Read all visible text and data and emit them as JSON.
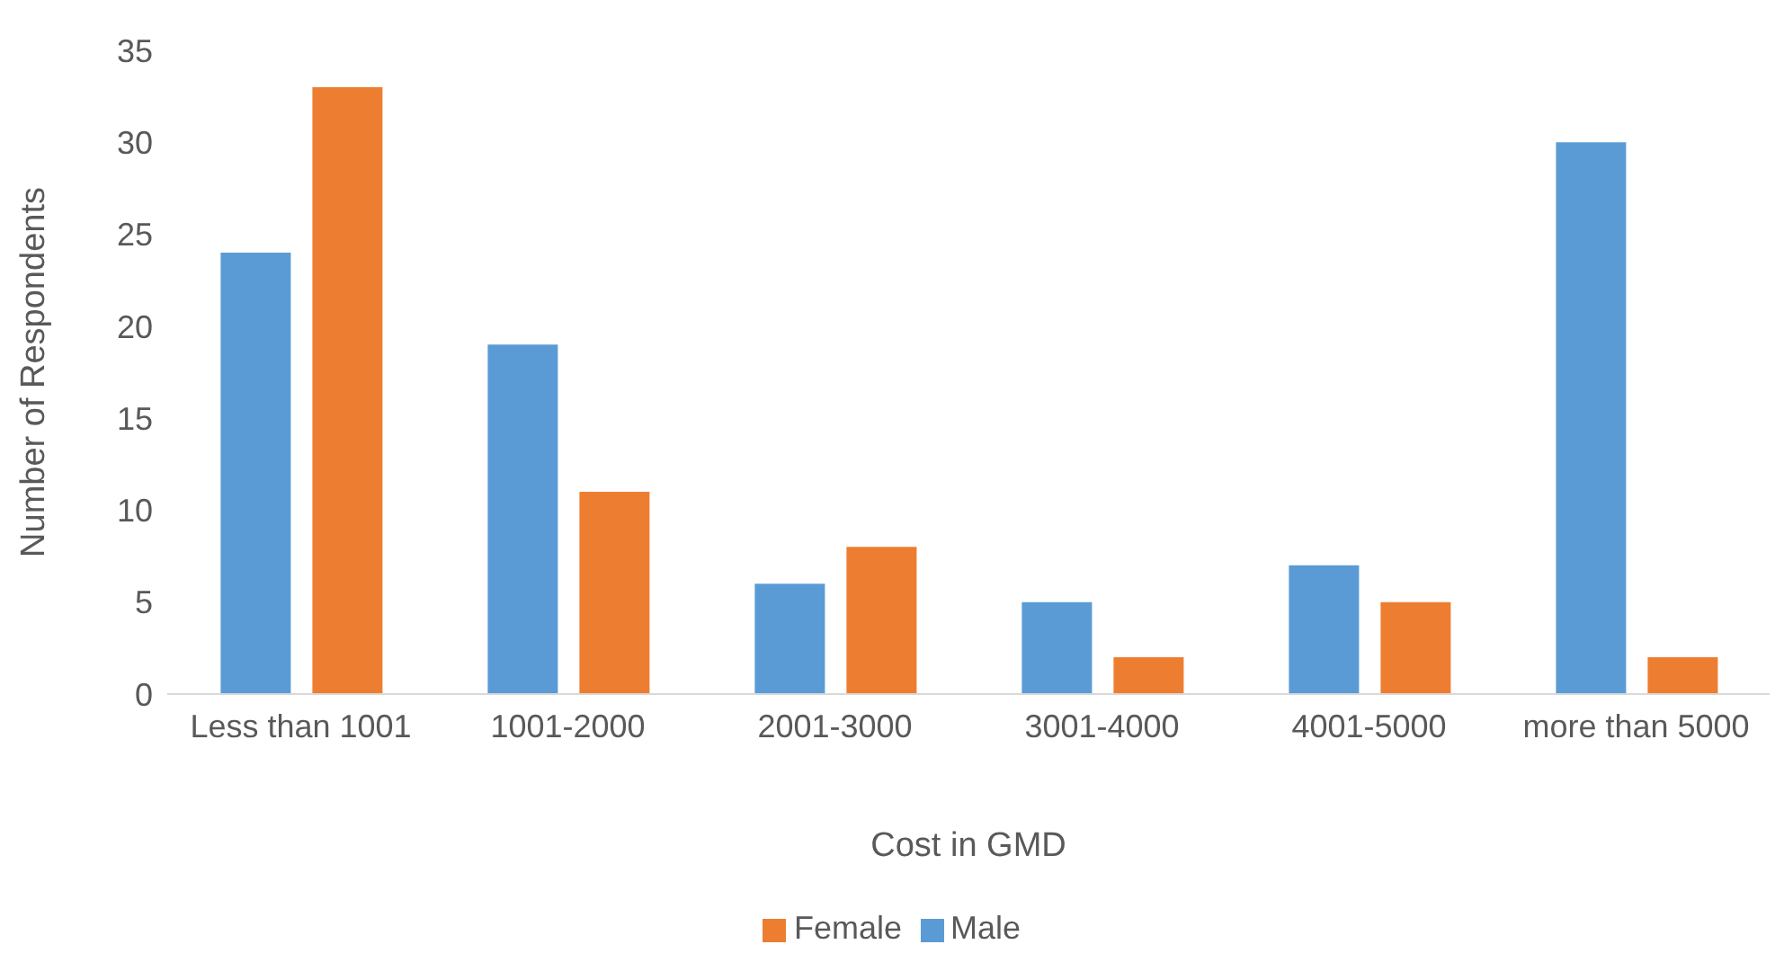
{
  "chart_data": {
    "type": "bar",
    "xlabel": "Cost in GMD",
    "ylabel": "Number of Respondents",
    "categories": [
      "Less than 1001",
      "1001-2000",
      "2001-3000",
      "3001-4000",
      "4001-5000",
      "more than 5000"
    ],
    "series": [
      {
        "name": "Male",
        "color": "#5b9bd5",
        "values": [
          24,
          19,
          6,
          5,
          7,
          30
        ]
      },
      {
        "name": "Female",
        "color": "#ed7d31",
        "values": [
          33,
          11,
          8,
          2,
          5,
          2
        ]
      }
    ],
    "ylim": [
      0,
      35
    ],
    "yticks": [
      0,
      5,
      10,
      15,
      20,
      25,
      30,
      35
    ],
    "legend": "bottom"
  }
}
